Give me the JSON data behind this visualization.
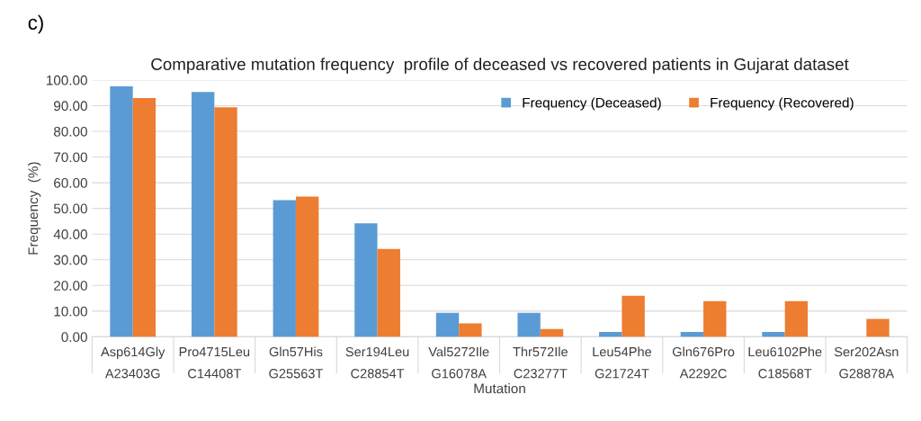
{
  "chart_data": {
    "type": "bar",
    "title": "Comparative mutation frequency  profile of deceased vs recovered patients in Gujarat dataset",
    "xlabel": "Mutation",
    "ylabel": "Frequency  (%)",
    "annotations": [
      "c)"
    ],
    "categories": [
      "Asp614Gly\nA23403G",
      "Pro4715Leu\nC14408T",
      "Gln57His\nG25563T",
      "Ser194Leu\nC28854T",
      "Val5272Ile\nG16078A",
      "Thr572Ile\nC23277T",
      "Leu54Phe\nG21724T",
      "Gln676Pro\nA2292C",
      "Leu6102Phe\nC18568T",
      "Ser202Asn\nG28878A"
    ],
    "series": [
      {
        "name": "Frequency (Deceased)",
        "color": "#5b9bd5",
        "values": [
          97.5,
          95.3,
          53.2,
          44.2,
          9.3,
          9.3,
          1.9,
          1.9,
          1.9,
          0
        ]
      },
      {
        "name": "Frequency (Recovered)",
        "color": "#ed7d31",
        "values": [
          93.0,
          89.4,
          54.6,
          34.2,
          5.2,
          3.0,
          16.0,
          13.9,
          13.9,
          7.0
        ]
      }
    ],
    "ylim": [
      0,
      100
    ],
    "yticks": [
      {
        "value": 0,
        "label": "0.00"
      },
      {
        "value": 10,
        "label": "10.00"
      },
      {
        "value": 20,
        "label": "20.00"
      },
      {
        "value": 30,
        "label": "30.00"
      },
      {
        "value": 40,
        "label": "40.00"
      },
      {
        "value": 50,
        "label": "50.00"
      },
      {
        "value": 60,
        "label": "60.00"
      },
      {
        "value": 70,
        "label": "70.00"
      },
      {
        "value": 80,
        "label": "80.00"
      },
      {
        "value": 90,
        "label": "90.00"
      },
      {
        "value": 100,
        "label": "100.00"
      }
    ],
    "grid": "y",
    "legend": "top right"
  }
}
